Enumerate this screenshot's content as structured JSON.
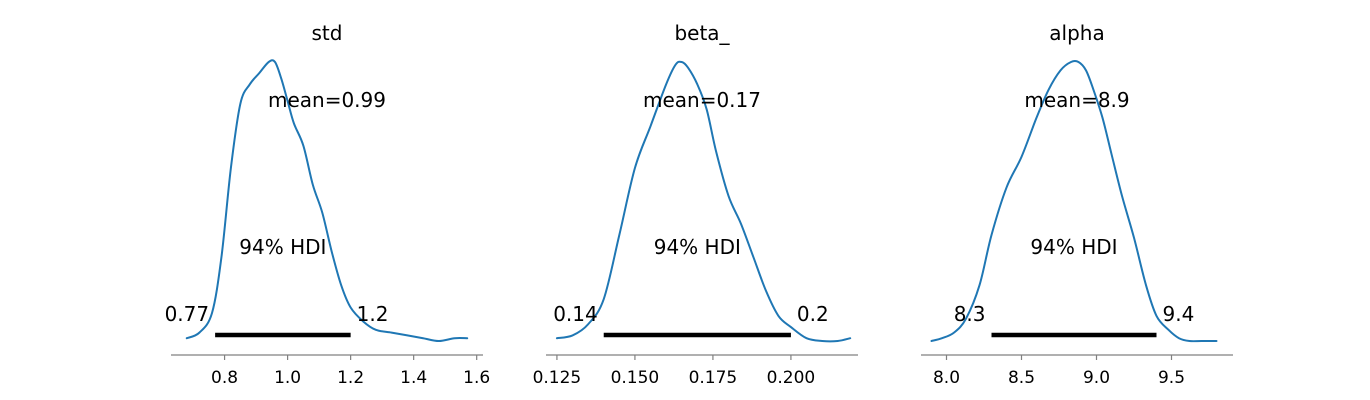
{
  "colors": {
    "curve": "#1f77b4",
    "hdi": "#000000",
    "axis": "#808080"
  },
  "chart_data": [
    {
      "type": "line",
      "title": "std",
      "mean_label": "mean=0.99",
      "hdi_label": "94% HDI",
      "hdi_low": 0.77,
      "hdi_low_label": "0.77",
      "hdi_high": 1.2,
      "hdi_high_label": "1.2",
      "xlim": [
        0.63,
        1.62
      ],
      "ticks": [
        0.8,
        1.0,
        1.2,
        1.4,
        1.6
      ],
      "tick_labels": [
        "0.8",
        "1.0",
        "1.2",
        "1.4",
        "1.6"
      ],
      "x": [
        0.68,
        0.72,
        0.76,
        0.79,
        0.82,
        0.85,
        0.88,
        0.91,
        0.94,
        0.96,
        0.98,
        1.0,
        1.02,
        1.05,
        1.08,
        1.11,
        1.14,
        1.17,
        1.2,
        1.24,
        1.28,
        1.33,
        1.38,
        1.43,
        1.48,
        1.53,
        1.57
      ],
      "y": [
        0.01,
        0.03,
        0.1,
        0.3,
        0.62,
        0.85,
        0.92,
        0.96,
        1.0,
        1.0,
        0.94,
        0.86,
        0.78,
        0.7,
        0.56,
        0.46,
        0.32,
        0.2,
        0.12,
        0.07,
        0.04,
        0.03,
        0.02,
        0.01,
        0.0,
        0.01,
        0.01
      ]
    },
    {
      "type": "line",
      "title": "beta_",
      "mean_label": "mean=0.17",
      "hdi_label": "94% HDI",
      "hdi_low": 0.14,
      "hdi_low_label": "0.14",
      "hdi_high": 0.2,
      "hdi_high_label": "0.2",
      "xlim": [
        0.1215,
        0.2215
      ],
      "ticks": [
        0.125,
        0.15,
        0.175,
        0.2
      ],
      "tick_labels": [
        "0.125",
        "0.150",
        "0.175",
        "0.200"
      ],
      "x": [
        0.125,
        0.13,
        0.135,
        0.14,
        0.145,
        0.15,
        0.155,
        0.16,
        0.163,
        0.165,
        0.167,
        0.17,
        0.173,
        0.176,
        0.18,
        0.184,
        0.188,
        0.192,
        0.196,
        0.2,
        0.205,
        0.21,
        0.215,
        0.219
      ],
      "y": [
        0.01,
        0.02,
        0.06,
        0.15,
        0.38,
        0.62,
        0.77,
        0.92,
        0.99,
        1.0,
        0.98,
        0.92,
        0.83,
        0.68,
        0.52,
        0.42,
        0.3,
        0.18,
        0.09,
        0.05,
        0.01,
        0.0,
        0.0,
        0.01
      ]
    },
    {
      "type": "line",
      "title": "alpha",
      "mean_label": "mean=8.9",
      "hdi_label": "94% HDI",
      "hdi_low": 8.3,
      "hdi_low_label": "8.3",
      "hdi_high": 9.4,
      "hdi_high_label": "9.4",
      "xlim": [
        7.83,
        9.91
      ],
      "ticks": [
        8.0,
        8.5,
        9.0,
        9.5
      ],
      "tick_labels": [
        "8.0",
        "8.5",
        "9.0",
        "9.5"
      ],
      "x": [
        7.9,
        7.97,
        8.05,
        8.13,
        8.22,
        8.3,
        8.4,
        8.5,
        8.6,
        8.68,
        8.76,
        8.83,
        8.88,
        8.93,
        8.98,
        9.04,
        9.1,
        9.17,
        9.25,
        9.33,
        9.4,
        9.48,
        9.55,
        9.62,
        9.7,
        9.8
      ],
      "y": [
        0.0,
        0.01,
        0.03,
        0.08,
        0.2,
        0.38,
        0.55,
        0.66,
        0.8,
        0.9,
        0.97,
        1.0,
        1.0,
        0.97,
        0.9,
        0.8,
        0.67,
        0.52,
        0.37,
        0.2,
        0.09,
        0.04,
        0.01,
        0.0,
        0.0,
        0.0
      ]
    }
  ]
}
